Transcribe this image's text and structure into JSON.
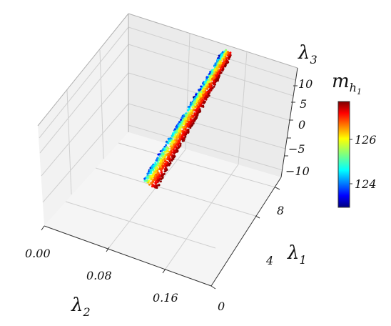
{
  "chart_data": {
    "type": "scatter",
    "projection": "3d",
    "title": "",
    "axes": {
      "x": {
        "label": "λ2",
        "label_base": "λ",
        "label_sub": "2",
        "ticks": [
          "0.00",
          "0.08",
          "0.16"
        ],
        "tick_values": [
          0.0,
          0.08,
          0.16
        ],
        "lim": [
          0.0,
          0.2
        ]
      },
      "y": {
        "label": "λ1",
        "label_base": "λ",
        "label_sub": "1",
        "ticks": [
          "0",
          "4",
          "8"
        ],
        "tick_values": [
          0,
          4,
          8
        ],
        "lim": [
          0,
          10
        ]
      },
      "z": {
        "label": "λ3",
        "label_base": "λ",
        "label_sub": "3",
        "ticks": [
          "−10",
          "−5",
          "0",
          "5",
          "10"
        ],
        "tick_values": [
          -10,
          -5,
          0,
          5,
          10
        ],
        "lim": [
          -10,
          10
        ]
      }
    },
    "grid": true,
    "colorbar": {
      "label": "mh1",
      "label_base": "m",
      "label_sub": "h",
      "label_subsub": "1",
      "ticks": [
        "124",
        "126"
      ],
      "tick_values": [
        124,
        126
      ],
      "range": [
        123.0,
        127.6
      ],
      "colormap": "jet"
    },
    "series": [
      {
        "description_of_band": "points lie on a thin diagonal band",
        "lambda2_range": [
          0.0,
          0.01
        ],
        "lambda1_range": [
          3.0,
          10.0
        ],
        "lambda3_range": [
          -10,
          10
        ],
        "color_value_range": [
          123.0,
          127.6
        ]
      }
    ]
  }
}
